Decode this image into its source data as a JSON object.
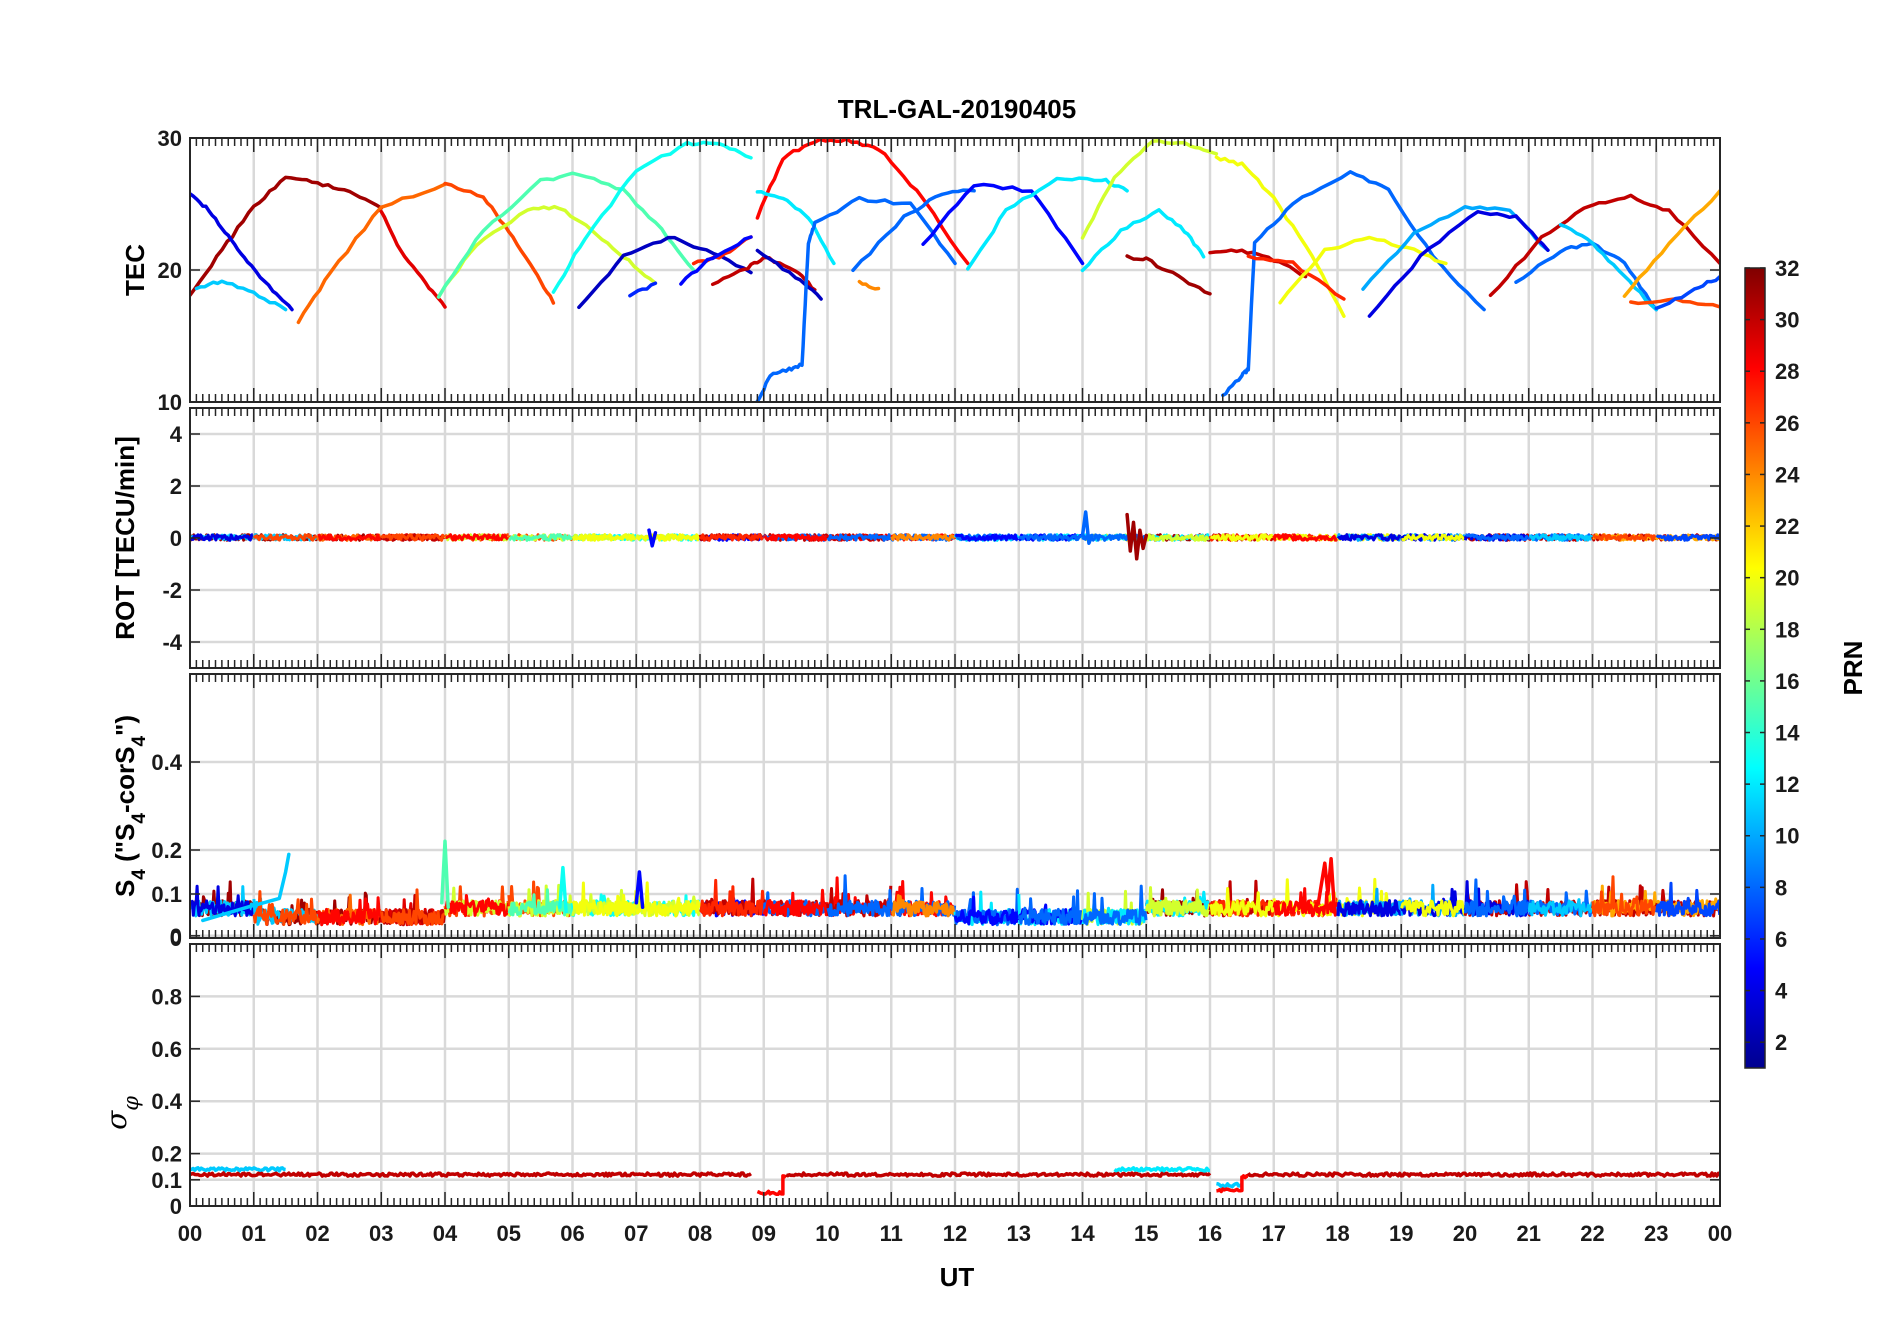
{
  "chart_data": {
    "type": "line",
    "title": "TRL-GAL-20190405",
    "xlabel": "UT",
    "x_ticks": [
      "00",
      "01",
      "02",
      "03",
      "04",
      "05",
      "06",
      "07",
      "08",
      "09",
      "10",
      "11",
      "12",
      "13",
      "14",
      "15",
      "16",
      "17",
      "18",
      "19",
      "20",
      "21",
      "22",
      "23",
      "00"
    ],
    "xlim": [
      0,
      24
    ],
    "grid": true,
    "colorbar": {
      "label": "PRN",
      "colormap": "jet",
      "range": [
        1,
        32
      ],
      "ticks": [
        "2",
        "4",
        "6",
        "8",
        "10",
        "12",
        "14",
        "16",
        "18",
        "20",
        "22",
        "24",
        "26",
        "28",
        "30",
        "32"
      ],
      "tick_values": [
        2,
        4,
        6,
        8,
        10,
        12,
        14,
        16,
        18,
        20,
        22,
        24,
        26,
        28,
        30,
        32
      ],
      "colors": [
        "#00008f",
        "#0000ff",
        "#0080ff",
        "#00ffff",
        "#80ff80",
        "#ffff00",
        "#ff8000",
        "#ff0000",
        "#800000"
      ]
    },
    "panels": [
      {
        "ylabel": "TEC",
        "ylim": [
          10,
          30
        ],
        "yticks": [
          "10",
          "20",
          "30"
        ],
        "ytick_values": [
          10,
          20,
          30
        ],
        "series": [
          {
            "prn": 31,
            "x": [
              0.0,
              0.5,
              1.0,
              1.5,
              2.0,
              2.5,
              3.0
            ],
            "y": [
              18.2,
              21.5,
              24.8,
              27.0,
              26.6,
              26.0,
              24.7
            ]
          },
          {
            "prn": 4,
            "x": [
              0.0,
              0.3,
              0.6,
              0.9,
              1.3,
              1.6
            ],
            "y": [
              25.8,
              24.5,
              22.5,
              20.6,
              18.5,
              17.0
            ]
          },
          {
            "prn": 11,
            "x": [
              0.1,
              0.5,
              1.0,
              1.5
            ],
            "y": [
              18.5,
              19.2,
              18.2,
              17.0
            ]
          },
          {
            "prn": 25,
            "x": [
              1.7,
              2.2,
              3.0,
              4.0
            ],
            "y": [
              16.0,
              19.8,
              24.8,
              26.5
            ]
          },
          {
            "prn": 29,
            "x": [
              3.0,
              3.3,
              3.7,
              4.0
            ],
            "y": [
              24.5,
              21.5,
              19.0,
              17.2
            ]
          },
          {
            "prn": 26,
            "x": [
              4.0,
              4.6,
              5.0,
              5.4,
              5.7
            ],
            "y": [
              26.5,
              25.5,
              23.0,
              20.0,
              17.5
            ]
          },
          {
            "prn": 19,
            "x": [
              3.9,
              4.5,
              5.3,
              5.8,
              6.3,
              6.8,
              7.3
            ],
            "y": [
              18.0,
              22.0,
              24.6,
              24.7,
              23.0,
              21.0,
              19.0
            ]
          },
          {
            "prn": 15,
            "x": [
              3.9,
              4.6,
              5.5,
              6.1,
              6.8,
              7.4,
              7.9
            ],
            "y": [
              18.0,
              23.0,
              26.8,
              27.3,
              26.0,
              23.0,
              20.0
            ]
          },
          {
            "prn": 13,
            "x": [
              5.7,
              6.2,
              7.0,
              7.8,
              8.3,
              8.8
            ],
            "y": [
              18.3,
              22.5,
              27.5,
              29.6,
              29.5,
              28.5
            ]
          },
          {
            "prn": 3,
            "x": [
              6.1,
              6.8,
              7.5,
              8.1,
              8.8
            ],
            "y": [
              17.2,
              21.0,
              22.5,
              21.5,
              19.8
            ]
          },
          {
            "prn": 6,
            "x": [
              6.9,
              7.3
            ],
            "y": [
              18.0,
              19.0
            ]
          },
          {
            "prn": 27,
            "x": [
              7.9,
              8.3,
              8.8
            ],
            "y": [
              20.5,
              21.0,
              22.5
            ]
          },
          {
            "prn": 5,
            "x": [
              7.7,
              8.2,
              8.8
            ],
            "y": [
              19.0,
              21.0,
              22.5
            ]
          },
          {
            "prn": 30,
            "x": [
              8.2,
              8.7,
              9.0,
              9.5,
              9.8
            ],
            "y": [
              19.0,
              20.0,
              21.0,
              20.0,
              18.5
            ]
          },
          {
            "prn": 3,
            "x": [
              8.9,
              9.5,
              9.9
            ],
            "y": [
              21.5,
              19.5,
              17.8
            ]
          },
          {
            "prn": 28,
            "x": [
              8.9,
              9.3,
              9.8,
              10.3,
              10.8,
              11.4,
              12.2
            ],
            "y": [
              24.0,
              28.5,
              29.8,
              29.9,
              29.2,
              26.0,
              20.5
            ]
          },
          {
            "prn": 12,
            "x": [
              8.9,
              9.3,
              9.7,
              10.1
            ],
            "y": [
              26.0,
              25.5,
              24.0,
              20.5
            ]
          },
          {
            "prn": 8,
            "x": [
              8.9,
              9.1,
              9.4,
              9.6,
              9.7,
              9.8,
              10.5,
              11.3,
              12.0
            ],
            "y": [
              10.0,
              12.0,
              12.5,
              12.8,
              22.0,
              23.5,
              25.4,
              25.0,
              20.5
            ]
          },
          {
            "prn": 24,
            "x": [
              10.5,
              10.8
            ],
            "y": [
              19.0,
              18.6
            ]
          },
          {
            "prn": 8,
            "x": [
              10.4,
              11.2,
              11.8,
              12.3
            ],
            "y": [
              20.0,
              24.0,
              25.8,
              26.0
            ]
          },
          {
            "prn": 5,
            "x": [
              11.5,
              12.3,
              13.2,
              14.0
            ],
            "y": [
              22.0,
              26.5,
              26.0,
              20.5
            ]
          },
          {
            "prn": 12,
            "x": [
              12.2,
              12.8,
              13.6,
              14.3,
              14.7
            ],
            "y": [
              20.0,
              24.5,
              26.9,
              26.9,
              26.0
            ]
          },
          {
            "prn": 19,
            "x": [
              14.0,
              14.5,
              15.1,
              15.7,
              16.1
            ],
            "y": [
              22.5,
              27.0,
              29.8,
              29.5,
              28.8
            ]
          },
          {
            "prn": 12,
            "x": [
              14.0,
              14.6,
              15.2,
              15.6,
              15.9
            ],
            "y": [
              20.0,
              23.0,
              24.5,
              23.0,
              21.0
            ]
          },
          {
            "prn": 31,
            "x": [
              14.7,
              15.0,
              15.5,
              16.0
            ],
            "y": [
              21.0,
              20.8,
              19.5,
              18.2
            ]
          },
          {
            "prn": 30,
            "x": [
              16.0,
              16.5,
              17.0,
              17.5
            ],
            "y": [
              21.3,
              21.5,
              20.8,
              19.5
            ]
          },
          {
            "prn": 20,
            "x": [
              16.1,
              16.5,
              17.0,
              17.6,
              18.1
            ],
            "y": [
              28.5,
              28.0,
              25.5,
              21.0,
              16.5
            ]
          },
          {
            "prn": 8,
            "x": [
              16.2,
              16.5,
              16.6,
              16.7,
              17.3,
              18.2,
              18.8,
              19.5,
              20.3
            ],
            "y": [
              10.5,
              12.0,
              12.5,
              22.0,
              25.0,
              27.5,
              26.0,
              21.0,
              17.0
            ]
          },
          {
            "prn": 27,
            "x": [
              16.6,
              17.3,
              18.1
            ],
            "y": [
              21.0,
              20.5,
              17.8
            ]
          },
          {
            "prn": 20,
            "x": [
              17.1,
              17.8,
              18.5,
              19.2,
              19.7
            ],
            "y": [
              17.5,
              21.5,
              22.5,
              21.5,
              20.5
            ]
          },
          {
            "prn": 10,
            "x": [
              18.4,
              19.2,
              20.0,
              20.7,
              21.3
            ],
            "y": [
              18.5,
              22.8,
              24.8,
              24.5,
              21.5
            ]
          },
          {
            "prn": 4,
            "x": [
              18.5,
              19.3,
              20.2,
              20.8,
              21.3
            ],
            "y": [
              16.5,
              21.0,
              24.5,
              24.0,
              21.5
            ]
          },
          {
            "prn": 30,
            "x": [
              20.4,
              21.2,
              22.0,
              22.6,
              23.2,
              24.0
            ],
            "y": [
              18.0,
              22.5,
              25.0,
              25.6,
              24.5,
              20.5
            ]
          },
          {
            "prn": 8,
            "x": [
              20.8,
              21.5,
              22.0,
              22.5,
              23.0
            ],
            "y": [
              19.0,
              21.5,
              22.0,
              20.5,
              17.0
            ]
          },
          {
            "prn": 11,
            "x": [
              21.5,
              22.0,
              22.5,
              23.0
            ],
            "y": [
              23.5,
              22.0,
              19.5,
              17.0
            ]
          },
          {
            "prn": 23,
            "x": [
              22.5,
              23.2,
              24.0
            ],
            "y": [
              18.0,
              22.0,
              26.0
            ]
          },
          {
            "prn": 26,
            "x": [
              22.6,
              23.3,
              24.0
            ],
            "y": [
              17.5,
              17.8,
              17.2
            ]
          },
          {
            "prn": 7,
            "x": [
              23.0,
              23.6,
              24.0
            ],
            "y": [
              17.0,
              18.5,
              19.5
            ]
          }
        ]
      },
      {
        "ylabel": "ROT [TECU/min]",
        "ylim": [
          -5,
          5
        ],
        "yticks": [
          "-4",
          "-2",
          "0",
          "2",
          "4"
        ],
        "ytick_values": [
          -4,
          -2,
          0,
          2,
          4
        ],
        "spikes": [
          {
            "prn": 8,
            "x": [
              14.0,
              14.05,
              14.1,
              14.15
            ],
            "y": [
              0.1,
              1.0,
              -0.2,
              0.1
            ]
          },
          {
            "prn": 31,
            "x": [
              14.7,
              14.75,
              14.8,
              14.85,
              14.9,
              14.95,
              15.0
            ],
            "y": [
              0.9,
              -0.5,
              0.6,
              -0.8,
              0.3,
              -0.4,
              0.1
            ]
          },
          {
            "prn": 5,
            "x": [
              7.2,
              7.25,
              7.3
            ],
            "y": [
              0.3,
              -0.3,
              0.2
            ]
          }
        ]
      },
      {
        "ylabel": "S4 (\"S4-corS4\")",
        "ylim": [
          0,
          0.6
        ],
        "yticks": [
          "0",
          "0",
          "0.1",
          "0.2",
          "0.4"
        ],
        "ytick_values": [
          0,
          0.005,
          0.1,
          0.2,
          0.4
        ],
        "spikes": [
          {
            "prn": 11,
            "x": [
              0.2,
              0.9,
              1.4,
              1.5,
              1.55
            ],
            "y": [
              0.04,
              0.07,
              0.09,
              0.15,
              0.19
            ]
          },
          {
            "prn": 15,
            "x": [
              3.95,
              4.0,
              4.05
            ],
            "y": [
              0.08,
              0.22,
              0.07
            ]
          },
          {
            "prn": 28,
            "x": [
              17.7,
              17.8,
              17.85,
              17.9,
              17.95
            ],
            "y": [
              0.08,
              0.17,
              0.1,
              0.18,
              0.07
            ]
          },
          {
            "prn": 13,
            "x": [
              5.8,
              5.85,
              5.9
            ],
            "y": [
              0.07,
              0.16,
              0.06
            ]
          },
          {
            "prn": 5,
            "x": [
              7.0,
              7.05,
              7.1
            ],
            "y": [
              0.08,
              0.15,
              0.07
            ]
          }
        ]
      },
      {
        "ylabel": "σ_φ",
        "ylim": [
          0,
          1
        ],
        "yticks": [
          "0",
          "0.1",
          "0.2",
          "0.4",
          "0.6",
          "0.8"
        ],
        "ytick_values": [
          0,
          0.1,
          0.2,
          0.4,
          0.6,
          0.8
        ],
        "series": [
          {
            "prn": 11,
            "x": [
              0.0,
              1.5
            ],
            "y": [
              0.14,
              0.14
            ]
          },
          {
            "prn": 30,
            "x": [
              0.0,
              8.8
            ],
            "y": [
              0.12,
              0.12
            ]
          },
          {
            "prn": 28,
            "x": [
              8.9,
              9.3,
              9.3,
              9.35
            ],
            "y": [
              0.05,
              0.05,
              0.11,
              0.11
            ]
          },
          {
            "prn": 30,
            "x": [
              9.35,
              16.0
            ],
            "y": [
              0.12,
              0.12
            ]
          },
          {
            "prn": 12,
            "x": [
              14.5,
              16.0
            ],
            "y": [
              0.14,
              0.14
            ]
          },
          {
            "prn": 11,
            "x": [
              16.1,
              16.5
            ],
            "y": [
              0.08,
              0.08
            ]
          },
          {
            "prn": 28,
            "x": [
              16.1,
              16.5,
              16.5,
              16.6
            ],
            "y": [
              0.06,
              0.06,
              0.11,
              0.11
            ]
          },
          {
            "prn": 30,
            "x": [
              16.6,
              24.0
            ],
            "y": [
              0.12,
              0.12
            ]
          }
        ]
      }
    ]
  }
}
